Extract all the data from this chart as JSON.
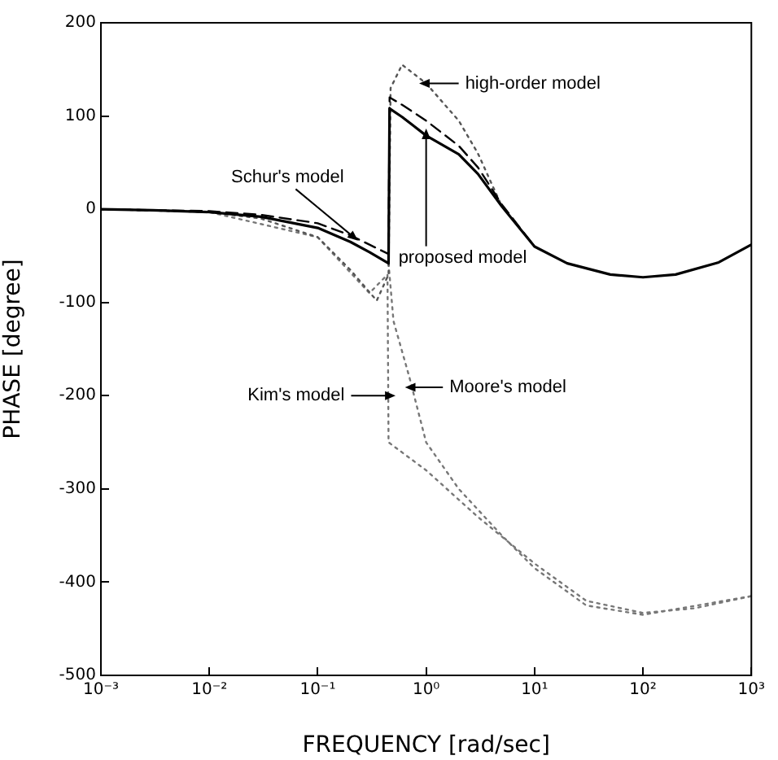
{
  "chart_data": {
    "type": "line",
    "xlabel": "FREQUENCY [rad/sec]",
    "ylabel": "PHASE [degree]",
    "log": "x",
    "grid": false,
    "legend": false,
    "marker": "none",
    "xlim": [
      0.001,
      1000
    ],
    "ylim": [
      -500,
      200
    ],
    "xticks": [
      {
        "value": 0.001,
        "label": "10⁻³"
      },
      {
        "value": 0.01,
        "label": "10⁻²"
      },
      {
        "value": 0.1,
        "label": "10⁻¹"
      },
      {
        "value": 1,
        "label": "10⁰"
      },
      {
        "value": 10,
        "label": "10¹"
      },
      {
        "value": 100,
        "label": "10²"
      },
      {
        "value": 1000,
        "label": "10³"
      }
    ],
    "yticks": [
      -500,
      -400,
      -300,
      -200,
      -100,
      0,
      100,
      200
    ],
    "series": [
      {
        "color": "#000000",
        "line_style": "solid",
        "x": [
          0.001,
          0.003,
          0.01,
          0.03,
          0.1,
          0.2,
          0.3,
          0.45,
          0.46,
          0.6,
          1,
          2,
          3,
          5,
          10,
          20,
          50,
          100,
          200,
          500,
          1000
        ],
        "values": [
          0,
          -1,
          -3,
          -8,
          -20,
          -35,
          -46,
          -58,
          108,
          99,
          79,
          59,
          38,
          3,
          -40,
          -58,
          -70,
          -73,
          -70,
          -57,
          -38
        ]
      },
      {
        "color": "#000000",
        "line_style": "dashed",
        "x": [
          0.001,
          0.003,
          0.01,
          0.03,
          0.1,
          0.2,
          0.3,
          0.45,
          0.46,
          0.6,
          1,
          2,
          3,
          5,
          10
        ],
        "values": [
          0,
          -1,
          -2,
          -6,
          -15,
          -28,
          -38,
          -48,
          120,
          112,
          95,
          68,
          45,
          5,
          -40
        ]
      },
      {
        "color": "#555555",
        "line_style": "dotted",
        "x": [
          0.001,
          0.003,
          0.01,
          0.03,
          0.1,
          0.2,
          0.35,
          0.45,
          0.47,
          0.6,
          1,
          2,
          3,
          5
        ],
        "values": [
          0,
          -1,
          -3,
          -10,
          -30,
          -65,
          -98,
          -70,
          130,
          155,
          135,
          95,
          60,
          3
        ]
      },
      {
        "color": "#777777",
        "line_style": "dotted",
        "x": [
          0.001,
          0.01,
          0.1,
          0.3,
          0.44,
          0.45,
          1,
          3,
          10,
          30,
          100,
          300,
          1000
        ],
        "values": [
          0,
          -3,
          -30,
          -90,
          -70,
          -250,
          -280,
          -330,
          -380,
          -420,
          -433,
          -428,
          -415
        ]
      },
      {
        "color": "#777777",
        "line_style": "dotted",
        "x": [
          0.45,
          0.5,
          0.7,
          1,
          2,
          5,
          10,
          30,
          100,
          1000
        ],
        "values": [
          -58,
          -120,
          -180,
          -250,
          -300,
          -350,
          -385,
          -425,
          -435,
          -415
        ]
      }
    ],
    "annotations": [
      {
        "text": "high-order model",
        "x": 1,
        "y": 135
      },
      {
        "text": "Schur's model",
        "x": 0.21,
        "y": -29
      },
      {
        "text": "proposed model",
        "x": 1,
        "y": 79
      },
      {
        "text": "Kim's model",
        "x": 0.45,
        "y": -200
      },
      {
        "text": "Moore's model",
        "x": 0.74,
        "y": -191
      }
    ]
  }
}
